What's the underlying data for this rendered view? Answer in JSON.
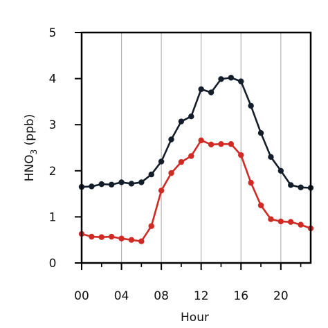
{
  "chart_data": {
    "type": "line",
    "xlabel": "Hour",
    "ylabel": {
      "main": "HNO",
      "sub": "3",
      "unit": " (ppb)"
    },
    "xlim": [
      0,
      23
    ],
    "ylim": [
      0,
      5
    ],
    "xticks": [
      0,
      4,
      8,
      12,
      16,
      20
    ],
    "xtick_labels": [
      "00",
      "04",
      "08",
      "12",
      "16",
      "20"
    ],
    "xminor_ticks": [
      2,
      6,
      10,
      14,
      18,
      22
    ],
    "yticks": [
      0,
      1,
      2,
      3,
      4,
      5
    ],
    "ytick_labels": [
      "0",
      "1",
      "2",
      "3",
      "4",
      "5"
    ],
    "grid": "vertical at major x ticks",
    "x": [
      0,
      1,
      2,
      3,
      4,
      5,
      6,
      7,
      8,
      9,
      10,
      11,
      12,
      13,
      14,
      15,
      16,
      17,
      18,
      19,
      20,
      21,
      22,
      23
    ],
    "series": [
      {
        "color": "#141e2b",
        "values": [
          1.65,
          1.66,
          1.71,
          1.7,
          1.75,
          1.72,
          1.75,
          1.92,
          2.2,
          2.68,
          3.07,
          3.18,
          3.77,
          3.7,
          3.99,
          4.02,
          3.94,
          3.41,
          2.82,
          2.3,
          2.0,
          1.69,
          1.64,
          1.63
        ]
      },
      {
        "color": "#d02a24",
        "values": [
          0.63,
          0.57,
          0.56,
          0.57,
          0.53,
          0.5,
          0.47,
          0.8,
          1.57,
          1.95,
          2.19,
          2.32,
          2.66,
          2.57,
          2.58,
          2.58,
          2.34,
          1.74,
          1.25,
          0.95,
          0.9,
          0.89,
          0.83,
          0.75
        ]
      }
    ]
  }
}
